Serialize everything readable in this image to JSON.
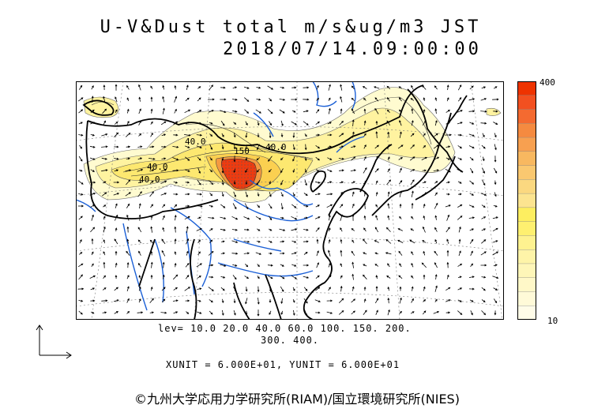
{
  "title": {
    "line1": "U-V&Dust total m/s&ug/m3 JST",
    "line2": "2018/07/14.09:00:00"
  },
  "map": {
    "contour_labels": [
      "40.0",
      "40.0",
      "40.0",
      "150",
      "40.0"
    ],
    "colors": {
      "land_border": "#000000",
      "river": "#1a5fd6",
      "grid": "#777777"
    }
  },
  "legend": {
    "lev_line1": "lev=  10.0  20.0  40.0  60.0  100.  150.  200.",
    "lev_line2": "300.  400.",
    "units": "XUNIT = 6.000E+01, YUNIT = 6.000E+01"
  },
  "colorbar": {
    "max_label": "400",
    "min_label": "10",
    "colors": [
      "#ee3300",
      "#f25020",
      "#f46a30",
      "#f58a40",
      "#f7a050",
      "#f8b860",
      "#fac870",
      "#fbd880",
      "#fce490",
      "#fdee60",
      "#fef070",
      "#fef290",
      "#fef4a8",
      "#fef6b8",
      "#fff8c8",
      "#fffad8",
      "#fffce8"
    ]
  },
  "copyright": "©九州大学応用力学研究所(RIAM)/国立環境研究所(NIES)"
}
